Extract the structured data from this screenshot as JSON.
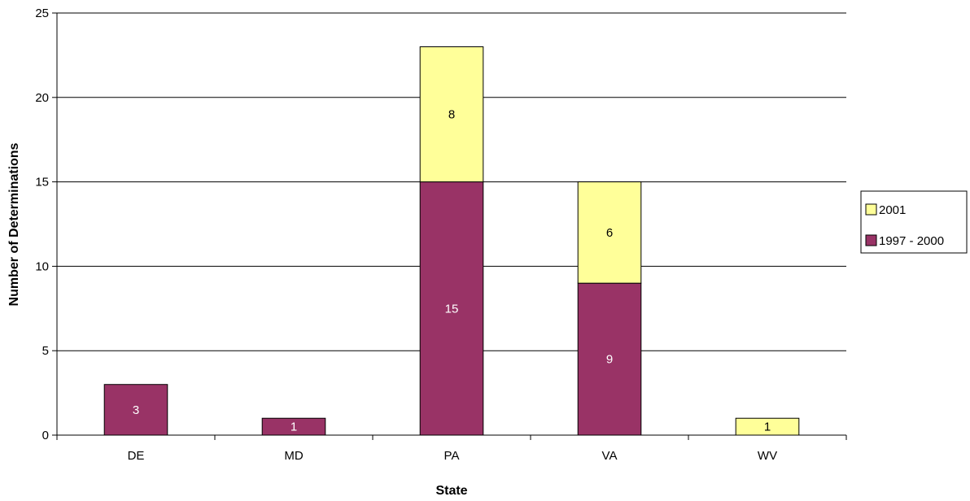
{
  "chart_data": {
    "type": "bar",
    "stacked": true,
    "title": "",
    "xlabel": "State",
    "ylabel": "Number of Determinations",
    "categories": [
      "DE",
      "MD",
      "PA",
      "VA",
      "WV"
    ],
    "ylim": [
      0,
      25
    ],
    "yticks": [
      0,
      5,
      10,
      15,
      20,
      25
    ],
    "grid": true,
    "legend_position": "right",
    "series": [
      {
        "name": "1997 - 2000",
        "values": [
          3,
          1,
          15,
          9,
          0
        ],
        "color": "#993366",
        "label_color": "#ffffff"
      },
      {
        "name": "2001",
        "values": [
          0,
          0,
          8,
          6,
          1
        ],
        "color": "#ffff99",
        "label_color": "#000000"
      }
    ],
    "legend_order": [
      "2001",
      "1997 - 2000"
    ]
  }
}
